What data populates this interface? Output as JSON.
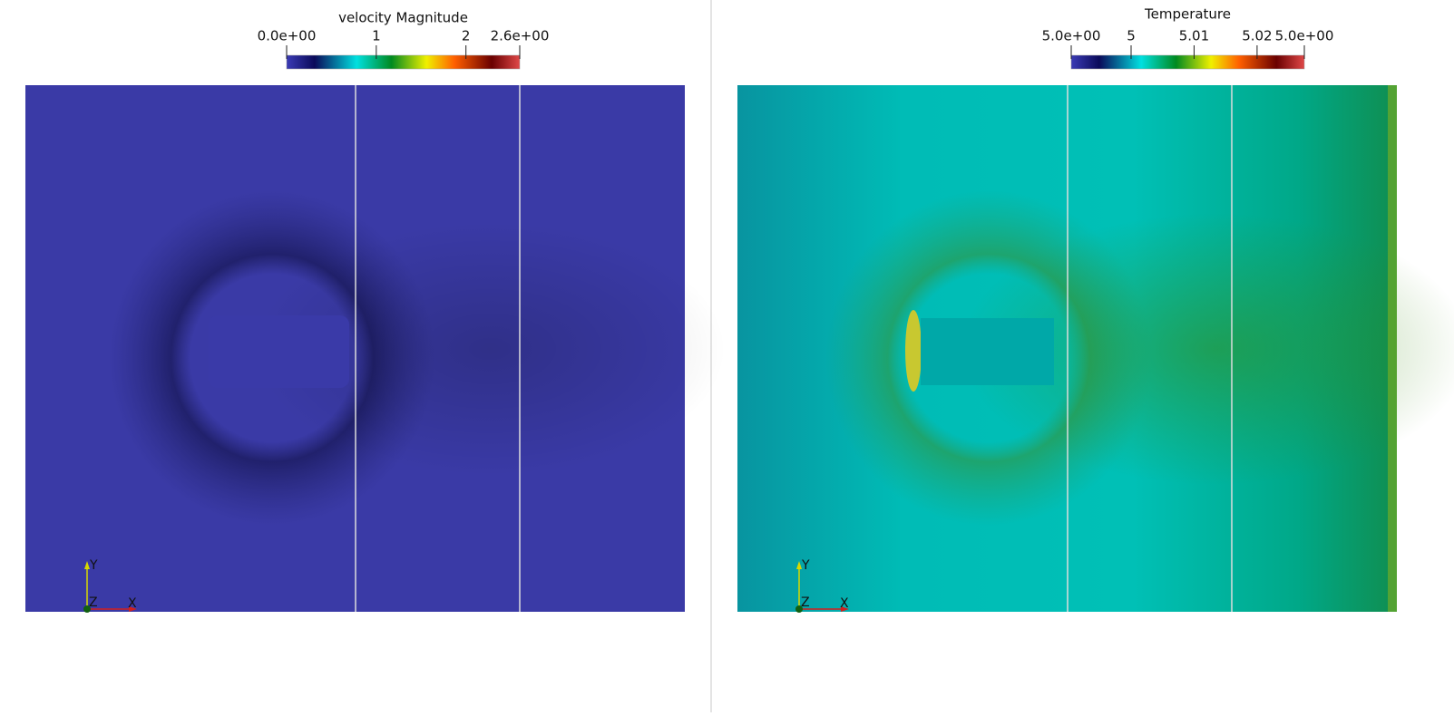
{
  "panels": [
    {
      "colorbar": {
        "title": "velocity Magnitude",
        "range": [
          0,
          2.6
        ],
        "ticks": [
          {
            "value": 0,
            "label": "0.0e+00"
          },
          1,
          2,
          {
            "value": 2.6,
            "label": "2.6e+00"
          }
        ]
      },
      "axes": {
        "x": "X",
        "y": "Y",
        "z": "Z"
      }
    },
    {
      "colorbar": {
        "title": "Temperature",
        "range": [
          4.9905,
          5.0275
        ],
        "ticks": [
          {
            "value": 4.9905,
            "label": "5.0e+00"
          },
          5,
          5.01,
          5.02,
          {
            "value": 5.0275,
            "label": "5.0e+00"
          }
        ]
      },
      "axes": {
        "x": "X",
        "y": "Y",
        "z": "Z"
      }
    }
  ]
}
